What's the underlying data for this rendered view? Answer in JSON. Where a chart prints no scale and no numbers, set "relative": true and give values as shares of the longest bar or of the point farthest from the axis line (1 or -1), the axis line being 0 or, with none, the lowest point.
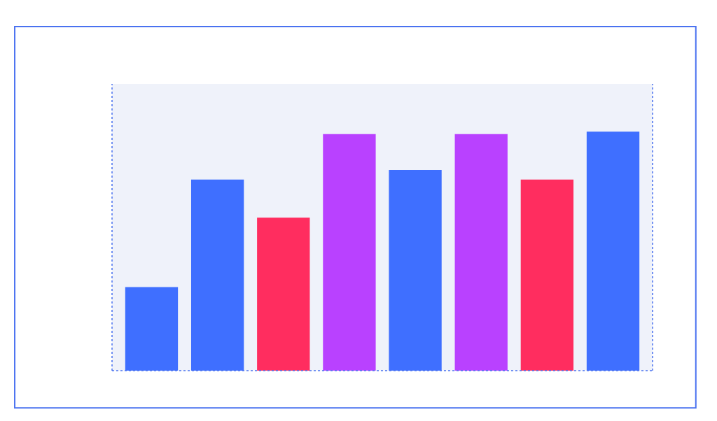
{
  "chart_data": {
    "type": "bar",
    "relative": true,
    "categories": [
      null,
      null,
      null,
      null,
      null,
      null,
      null,
      null
    ],
    "values": [
      0.35,
      0.8,
      0.64,
      0.99,
      0.84,
      0.99,
      0.8,
      1.0
    ],
    "colors": [
      "#3f6fff",
      "#3f6fff",
      "#ff2d5f",
      "#b941ff",
      "#3f6fff",
      "#b941ff",
      "#ff2d5f",
      "#3f6fff"
    ],
    "grid": false
  }
}
